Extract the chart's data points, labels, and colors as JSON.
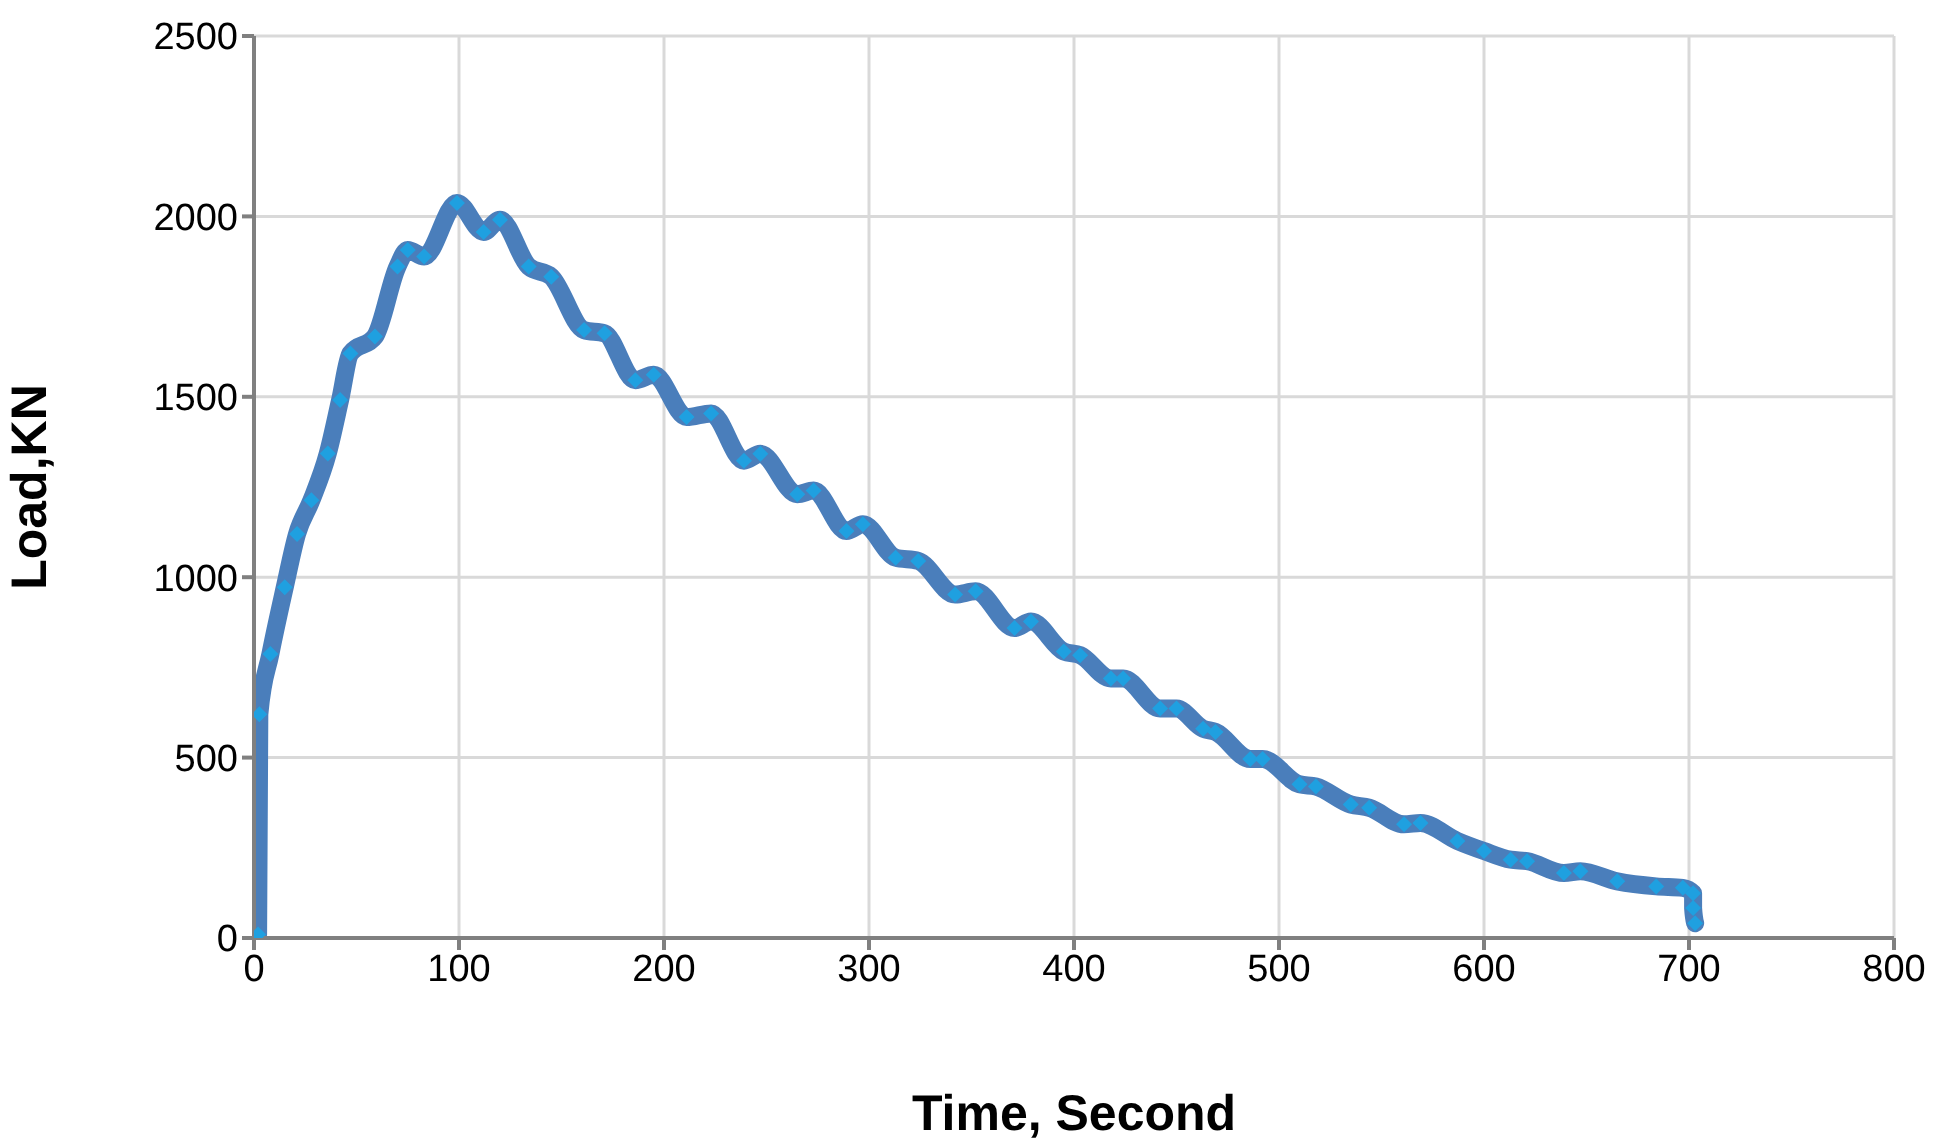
{
  "chart_data": {
    "type": "line",
    "xlabel": "Time, Second",
    "ylabel": "Load,KN",
    "xlim": [
      0,
      800
    ],
    "xticks": [
      0,
      100,
      200,
      300,
      400,
      500,
      600,
      700,
      800
    ],
    "ylim": [
      0,
      2500
    ],
    "yticks": [
      0,
      500,
      1000,
      1500,
      2000,
      2500
    ],
    "grid": true,
    "marker": "diamond",
    "line_style": "solid",
    "series": [
      {
        "color": "#4a7ebb",
        "x": [
          2,
          2.6,
          8,
          15,
          21,
          28,
          36,
          42,
          47,
          59,
          70,
          75,
          83,
          99,
          112,
          120,
          134,
          145,
          161,
          171,
          186,
          195,
          211,
          223,
          239,
          247,
          265,
          273,
          289,
          297,
          313,
          324,
          342,
          352,
          371,
          379,
          395,
          403,
          418,
          424,
          442,
          450,
          463,
          469,
          486,
          492,
          510,
          518,
          535,
          544,
          561,
          569,
          587,
          600,
          613,
          621,
          639,
          647,
          665,
          684,
          697,
          702,
          702,
          703
        ],
        "values": [
          10,
          620,
          787,
          972,
          1120,
          1213,
          1343,
          1491,
          1620,
          1667,
          1861,
          1907,
          1889,
          2037,
          1957,
          1991,
          1861,
          1833,
          1685,
          1676,
          1546,
          1561,
          1444,
          1454,
          1323,
          1342,
          1230,
          1240,
          1128,
          1147,
          1054,
          1045,
          952,
          961,
          859,
          877,
          794,
          784,
          719,
          719,
          636,
          636,
          580,
          571,
          496,
          496,
          426,
          420,
          370,
          361,
          315,
          319,
          269,
          241,
          217,
          213,
          180,
          185,
          157,
          143,
          139,
          124,
          83,
          41
        ]
      }
    ]
  }
}
